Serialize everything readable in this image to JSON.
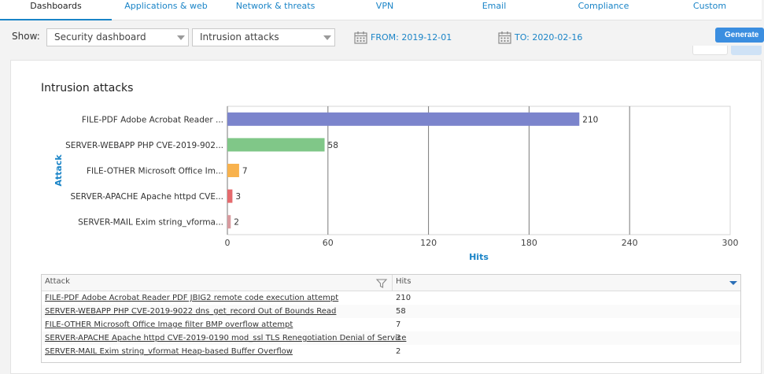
{
  "tabs": [
    {
      "label": "Dashboards",
      "active": true
    },
    {
      "label": "Applications & web",
      "active": false
    },
    {
      "label": "Network & threats",
      "active": false
    },
    {
      "label": "VPN",
      "active": false
    },
    {
      "label": "Email",
      "active": false
    },
    {
      "label": "Compliance",
      "active": false
    },
    {
      "label": "Custom",
      "active": false
    }
  ],
  "toolbar": {
    "show_label": "Show:",
    "dashboard_select": "Security dashboard",
    "report_select": "Intrusion attacks",
    "from_date": "FROM: 2019-12-01",
    "to_date": "TO: 2020-02-16",
    "generate_label": "Generate"
  },
  "colors": {
    "accent": "#1a84c7",
    "button": "#3b8ee0",
    "bars": [
      "#7b84cc",
      "#80c788",
      "#f8b24d",
      "#e56a6d",
      "#d99a9e"
    ]
  },
  "chart_data": {
    "type": "bar",
    "orientation": "horizontal",
    "title": "Intrusion attacks",
    "xlabel": "Hits",
    "ylabel": "Attack",
    "xlim": [
      0,
      300
    ],
    "xticks": [
      0,
      60,
      120,
      180,
      240,
      300
    ],
    "categories": [
      "FILE-PDF Adobe Acrobat Reader ...",
      "SERVER-WEBAPP PHP CVE-2019-902...",
      "FILE-OTHER Microsoft Office Im...",
      "SERVER-APACHE Apache httpd CVE...",
      "SERVER-MAIL Exim string_vforma..."
    ],
    "values": [
      210,
      58,
      7,
      3,
      2
    ],
    "grid": true
  },
  "table": {
    "columns": [
      "Attack",
      "Hits"
    ],
    "rows": [
      {
        "attack": "FILE-PDF Adobe Acrobat Reader PDF JBIG2 remote code execution attempt",
        "hits": "210"
      },
      {
        "attack": "SERVER-WEBAPP PHP CVE-2019-9022 dns_get_record Out of Bounds Read",
        "hits": "58"
      },
      {
        "attack": "FILE-OTHER Microsoft Office Image filter BMP overflow attempt",
        "hits": "7"
      },
      {
        "attack": "SERVER-APACHE Apache httpd CVE-2019-0190 mod_ssl TLS Renegotiation Denial of Service",
        "hits": "3"
      },
      {
        "attack": "SERVER-MAIL Exim string_vformat Heap-based Buffer Overflow",
        "hits": "2"
      }
    ]
  }
}
